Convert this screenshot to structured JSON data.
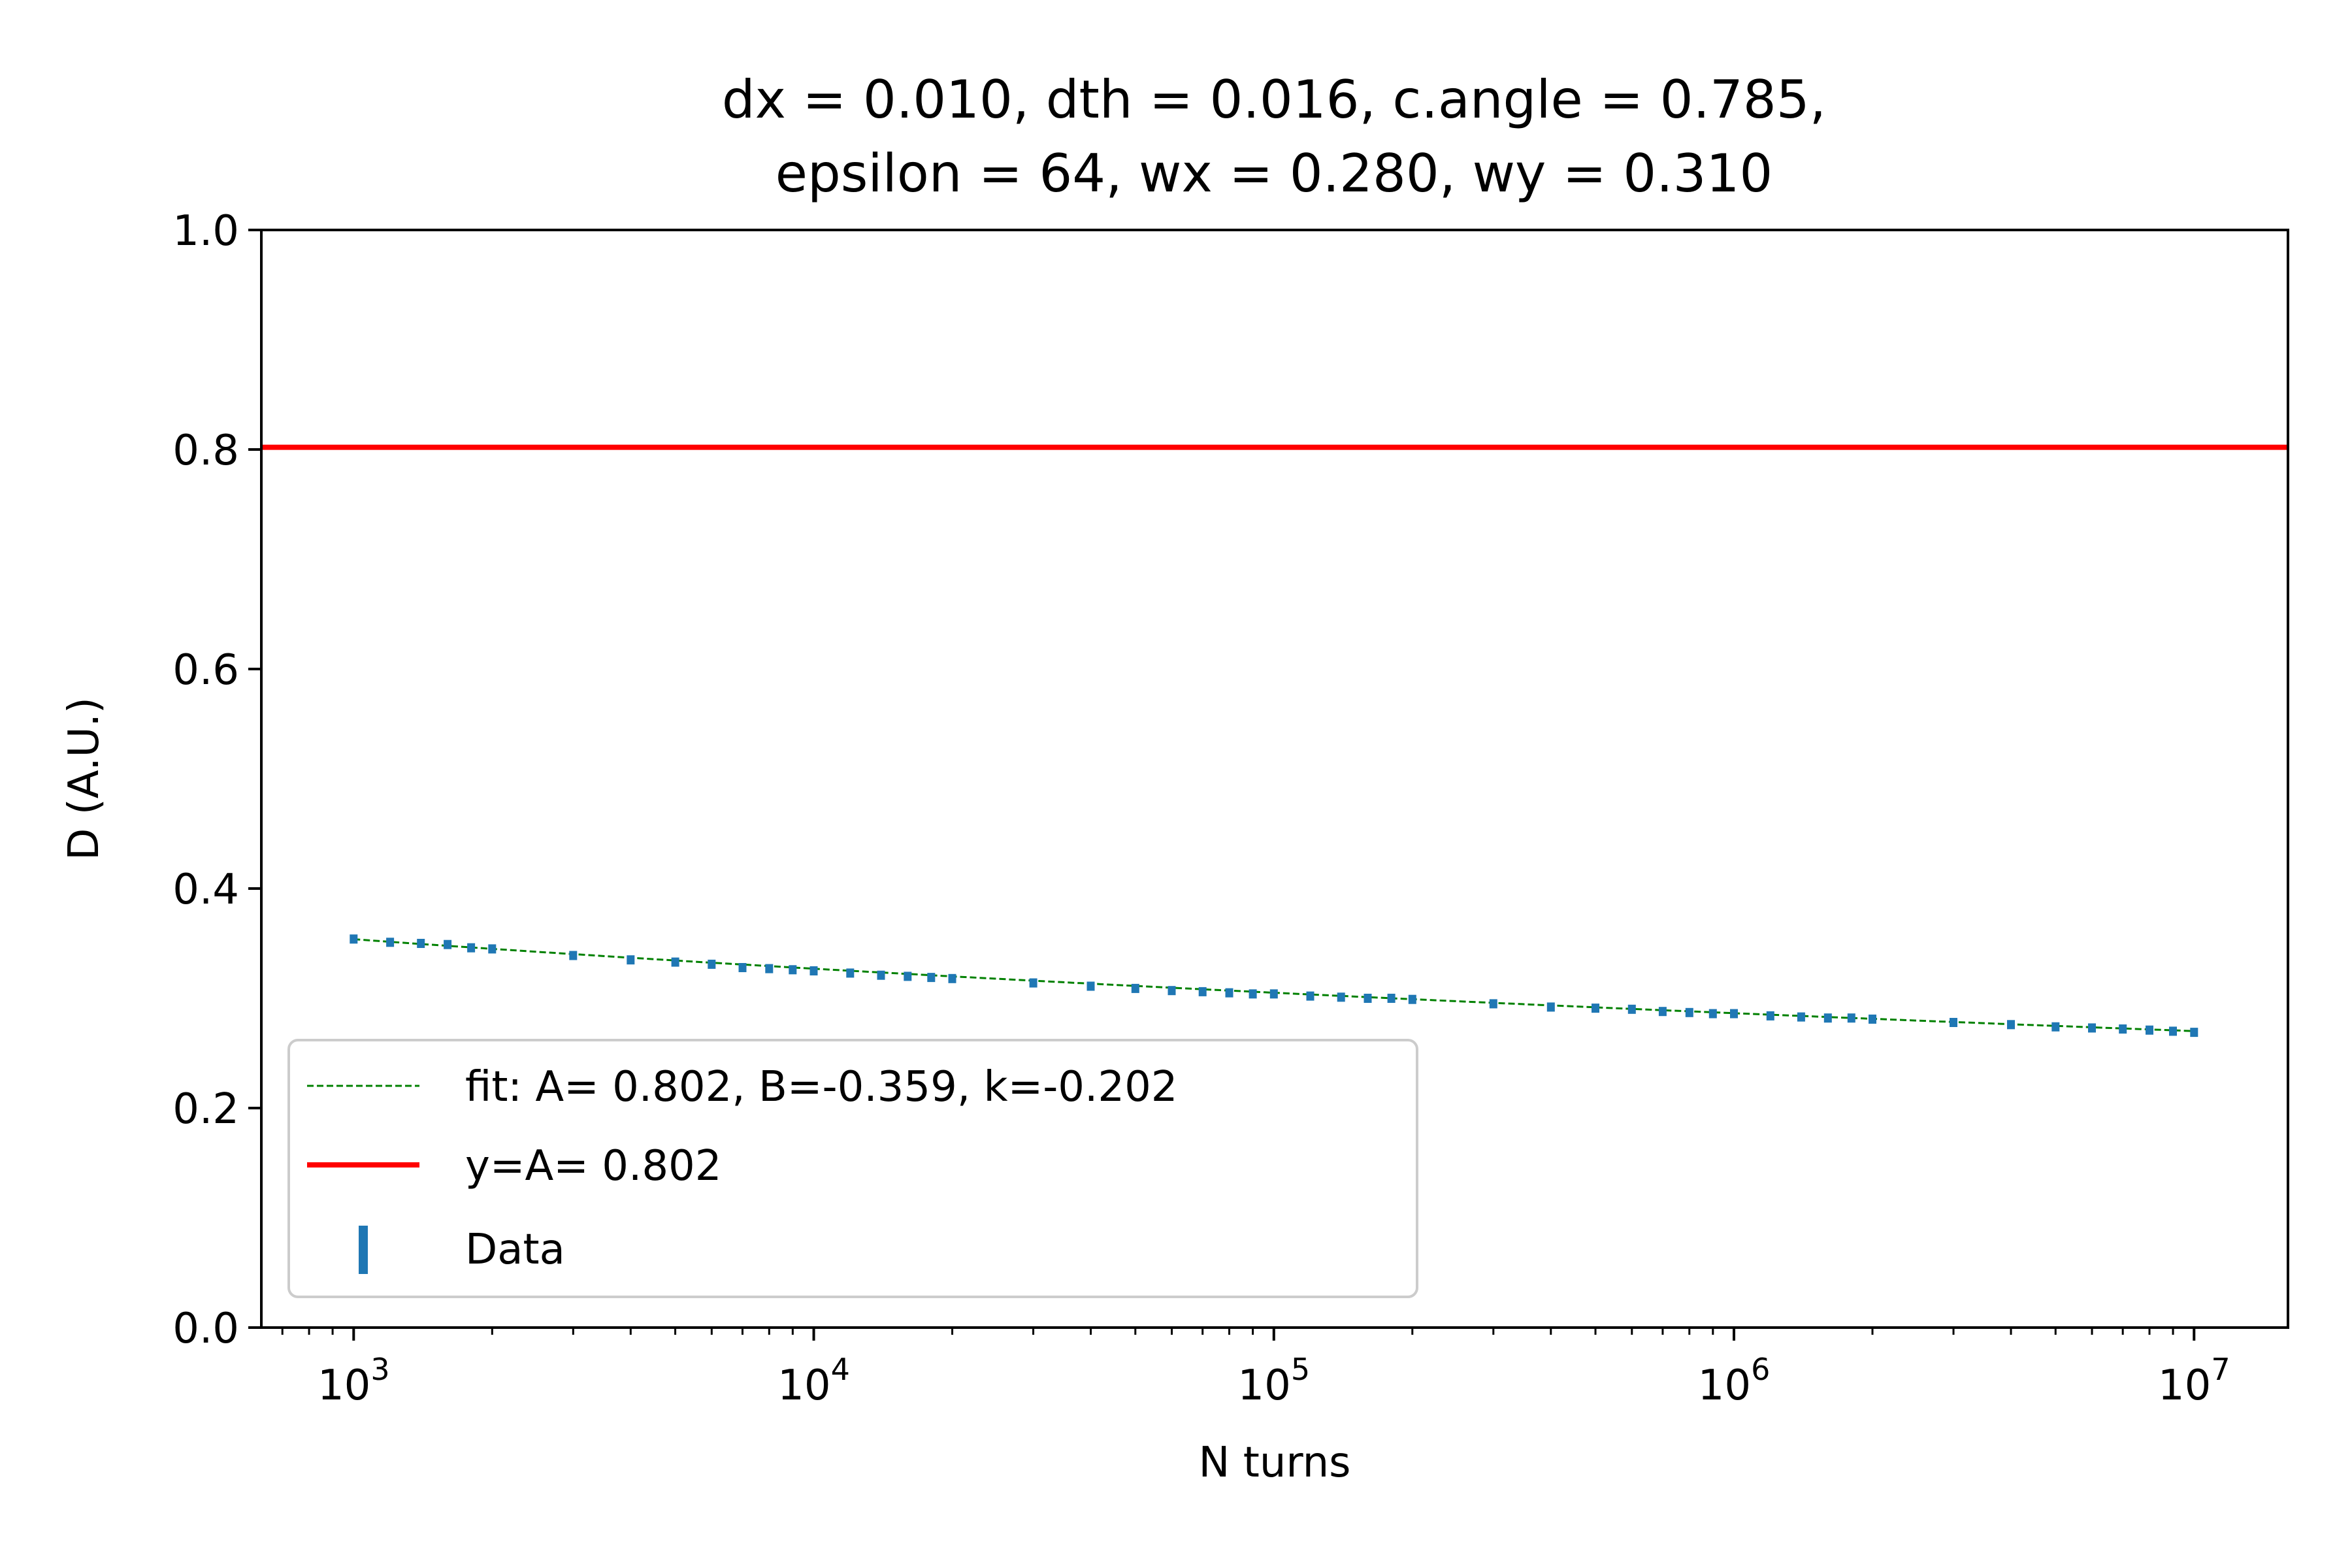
{
  "chart_data": {
    "type": "scatter",
    "title_lines": [
      "dx = 0.010, dth = 0.016, c.angle = 0.785,",
      "epsilon = 64, wx = 0.280, wy = 0.310"
    ],
    "xlabel": "N turns",
    "ylabel": "D (A.U.)",
    "xscale": "log",
    "xlim": [
      630,
      16000000
    ],
    "ylim": [
      0.0,
      1.0
    ],
    "grid": false,
    "legend_position": "lower-left",
    "x_ticks": [
      {
        "value": 1000,
        "base": "10",
        "exp": "3"
      },
      {
        "value": 10000,
        "base": "10",
        "exp": "4"
      },
      {
        "value": 100000,
        "base": "10",
        "exp": "5"
      },
      {
        "value": 1000000,
        "base": "10",
        "exp": "6"
      },
      {
        "value": 10000000,
        "base": "10",
        "exp": "7"
      }
    ],
    "y_ticks": [
      {
        "value": 0.0,
        "label": "0.0"
      },
      {
        "value": 0.2,
        "label": "0.2"
      },
      {
        "value": 0.4,
        "label": "0.4"
      },
      {
        "value": 0.6,
        "label": "0.6"
      },
      {
        "value": 0.8,
        "label": "0.8"
      },
      {
        "value": 1.0,
        "label": "1.0"
      }
    ],
    "fit": {
      "label": "fit: A= 0.802, B=-0.359, k=-0.202",
      "A": 0.802,
      "B": -0.359,
      "k": -0.202,
      "color": "#008000"
    },
    "hline": {
      "label": "y=A= 0.802",
      "y": 0.802,
      "color": "#ff0000"
    },
    "data": {
      "label": "Data",
      "color": "#1f77b4",
      "x": [
        1000,
        1200,
        1400,
        1600,
        1800,
        2000,
        3000,
        4000,
        5000,
        6000,
        7000,
        8000,
        9000,
        10000,
        12000,
        14000,
        16000,
        18000,
        20000,
        30000,
        40000,
        50000,
        60000,
        70000,
        80000,
        90000,
        100000,
        120000,
        140000,
        160000,
        180000,
        200000,
        300000,
        400000,
        500000,
        600000,
        700000,
        800000,
        900000,
        1000000,
        1200000,
        1400000,
        1600000,
        1800000,
        2000000,
        3000000,
        4000000,
        5000000,
        6000000,
        7000000,
        8000000,
        9000000,
        10000000
      ],
      "y": [
        0.354,
        0.351,
        0.35,
        0.349,
        0.346,
        0.345,
        0.339,
        0.335,
        0.333,
        0.331,
        0.328,
        0.327,
        0.326,
        0.325,
        0.323,
        0.321,
        0.32,
        0.319,
        0.318,
        0.314,
        0.311,
        0.309,
        0.307,
        0.306,
        0.305,
        0.304,
        0.304,
        0.302,
        0.301,
        0.3,
        0.3,
        0.299,
        0.295,
        0.292,
        0.291,
        0.29,
        0.288,
        0.287,
        0.286,
        0.286,
        0.284,
        0.283,
        0.282,
        0.282,
        0.281,
        0.278,
        0.276,
        0.274,
        0.273,
        0.272,
        0.271,
        0.27,
        0.269
      ]
    }
  }
}
